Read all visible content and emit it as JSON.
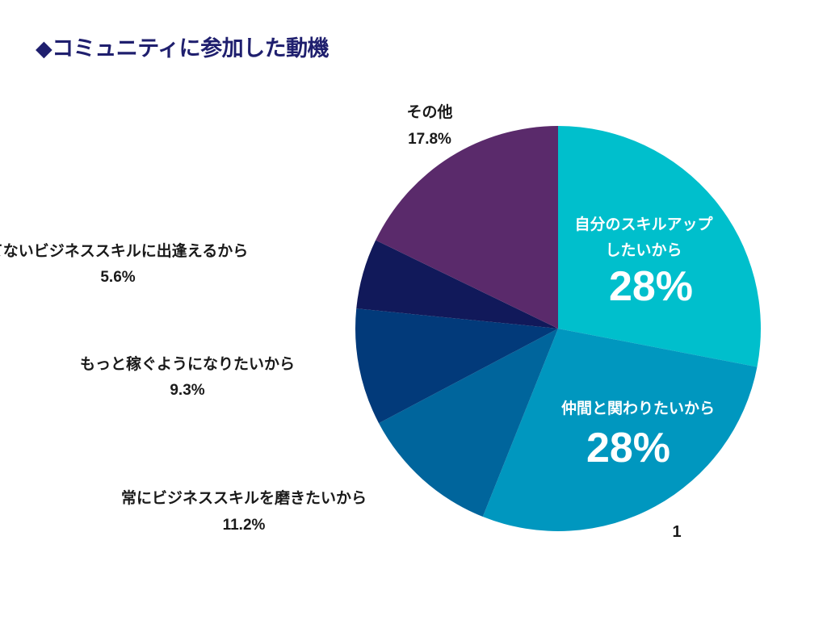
{
  "slide": {
    "title": "◆コミュニティに参加した動機",
    "page_number": "1"
  },
  "chart_data": {
    "type": "pie",
    "title": "◆コミュニティに参加した動機",
    "slices": [
      {
        "label": "自分のスキルアップしたいから",
        "label_lines": [
          "自分のスキルアップ",
          "したいから"
        ],
        "value": 28,
        "display": "28%",
        "color": "#00bfcc"
      },
      {
        "label": "仲間と関わりたいから",
        "label_lines": [
          "仲間と関わりたいから"
        ],
        "value": 28,
        "display": "28%",
        "color": "#0097bf"
      },
      {
        "label": "常にビジネススキルを磨きたいから",
        "label_lines": [
          "常にビジネススキルを磨きたいから"
        ],
        "value": 11.2,
        "display": "11.2%",
        "color": "#00659c"
      },
      {
        "label": "もっと稼ぐようになりたいから",
        "label_lines": [
          "もっと稼ぐようになりたいから"
        ],
        "value": 9.3,
        "display": "9.3%",
        "color": "#023a7a"
      },
      {
        "label": "てないビジネススキルに出逢えるから",
        "label_lines": [
          "てないビジネススキルに出逢えるから"
        ],
        "value": 5.6,
        "display": "5.6%",
        "color": "#11195a"
      },
      {
        "label": "その他",
        "label_lines": [
          "その他"
        ],
        "value": 17.8,
        "display": "17.8%",
        "color": "#5a2a6b"
      }
    ]
  }
}
